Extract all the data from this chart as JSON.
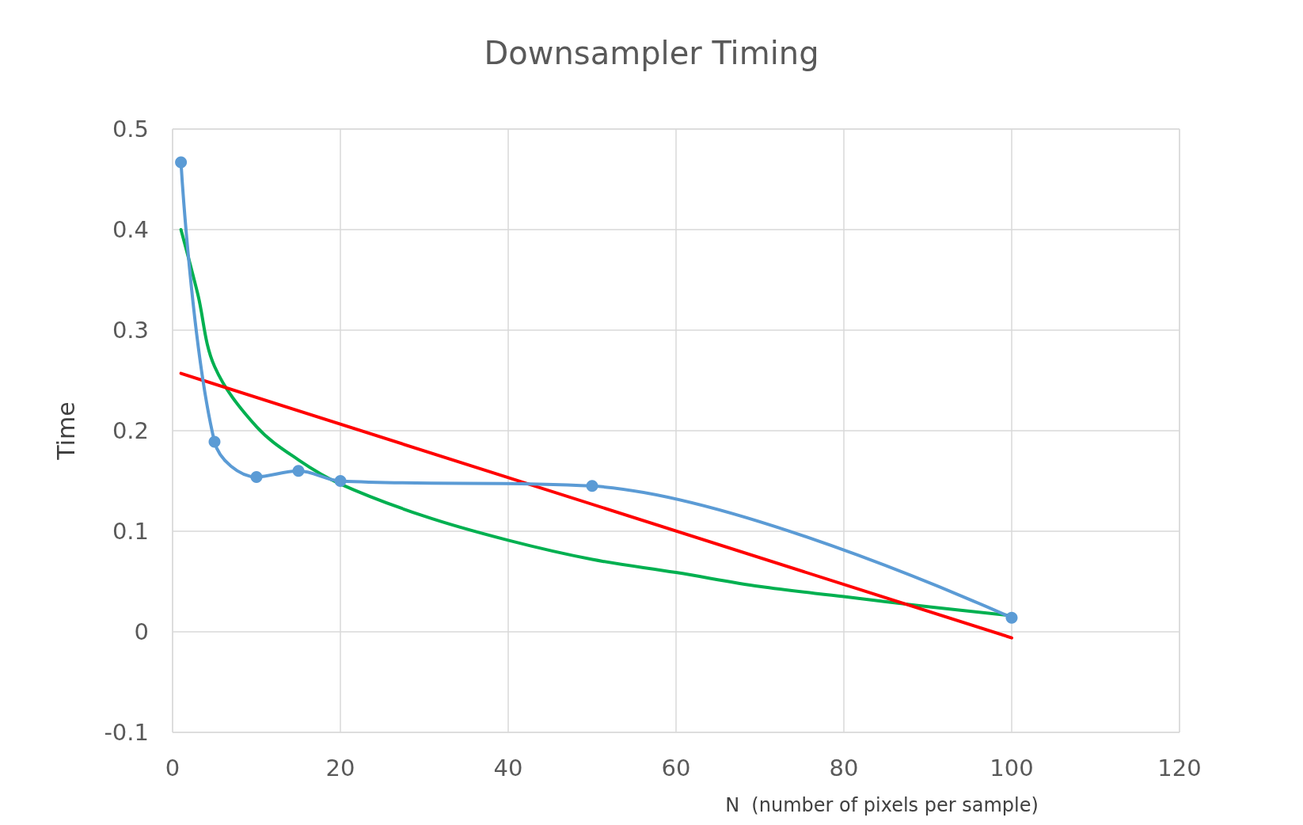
{
  "chart_data": {
    "type": "line",
    "title": "Downsampler Timing",
    "xlabel": "N  (number of pixels per sample)",
    "ylabel": "Time",
    "xlim": [
      0,
      120
    ],
    "xticks": [
      0,
      20,
      40,
      60,
      80,
      100,
      120
    ],
    "ylim": [
      -0.1,
      0.5
    ],
    "yticks": [
      -0.1,
      0,
      0.1,
      0.2,
      0.3,
      0.4,
      0.5
    ],
    "grid": true,
    "series": [
      {
        "color": "#5b9bd5",
        "marker": "circle",
        "x": [
          1,
          5,
          10,
          15,
          20,
          50,
          100
        ],
        "values": [
          0.467,
          0.189,
          0.154,
          0.16,
          0.15,
          0.145,
          0.014
        ]
      },
      {
        "color": "#00b050",
        "marker": "none",
        "x": [
          1,
          3,
          5,
          10,
          15,
          20,
          30,
          40,
          50,
          60,
          70,
          80,
          90,
          100
        ],
        "values": [
          0.4,
          0.336,
          0.264,
          0.204,
          0.171,
          0.147,
          0.115,
          0.091,
          0.072,
          0.059,
          0.045,
          0.035,
          0.025,
          0.016
        ]
      },
      {
        "color": "#ff0000",
        "marker": "none",
        "x": [
          1,
          100
        ],
        "values": [
          0.257,
          -0.006
        ]
      }
    ]
  }
}
